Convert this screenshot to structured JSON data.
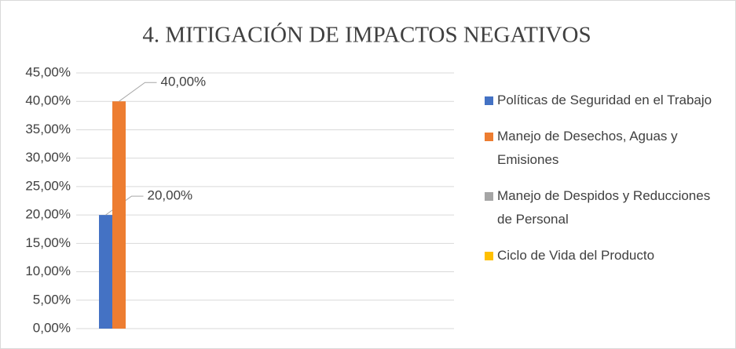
{
  "chart_data": {
    "type": "bar",
    "title": "4. MITIGACIÓN DE IMPACTOS NEGATIVOS",
    "categories": [
      null
    ],
    "series": [
      {
        "name": "Políticas de Seguridad en el Trabajo",
        "color": "#4472c4",
        "values": [
          20
        ],
        "value_labels": [
          "20,00%"
        ]
      },
      {
        "name": "Manejo de Desechos, Aguas y Emisiones",
        "color": "#ed7d31",
        "values": [
          40
        ],
        "value_labels": [
          "40,00%"
        ]
      },
      {
        "name": "Manejo de Despidos y Reducciones de Personal",
        "color": "#a5a5a5",
        "values": [
          null
        ]
      },
      {
        "name": "Ciclo de Vida del Producto",
        "color": "#ffc000",
        "values": [
          null
        ]
      }
    ],
    "ylim": [
      0,
      45
    ],
    "yticks": [
      {
        "value": 0,
        "label": "0,00%"
      },
      {
        "value": 5,
        "label": "5,00%"
      },
      {
        "value": 10,
        "label": "10,00%"
      },
      {
        "value": 15,
        "label": "15,00%"
      },
      {
        "value": 20,
        "label": "20,00%"
      },
      {
        "value": 25,
        "label": "25,00%"
      },
      {
        "value": 30,
        "label": "30,00%"
      },
      {
        "value": 35,
        "label": "35,00%"
      },
      {
        "value": 40,
        "label": "40,00%"
      },
      {
        "value": 45,
        "label": "45,00%"
      }
    ],
    "grid": true,
    "legend": "right"
  }
}
